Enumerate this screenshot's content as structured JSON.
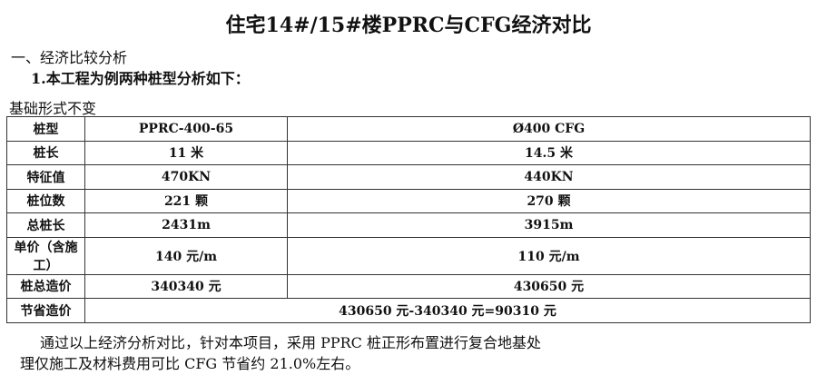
{
  "title": "住宅14#/15#楼PPRC与CFG经济对比",
  "section_heading": "一、经济比较分析",
  "sub_heading": "1.本工程为例两种桩型分析如下：",
  "table_caption": "基础形式不变",
  "table": {
    "rows": [
      [
        "桩型",
        "PPRC-400-65",
        "Ø400 CFG"
      ],
      [
        "桩长",
        "11 米",
        "14.5 米"
      ],
      [
        "特征值",
        "470KN",
        "440KN"
      ],
      [
        "桩位数",
        "221 颗",
        "270 颗"
      ],
      [
        "总桩长",
        "2431m",
        "3915m"
      ],
      [
        "单价（含施工）",
        "140 元/m",
        "110 元/m"
      ],
      [
        "桩总造价",
        "340340 元",
        "430650 元"
      ]
    ],
    "savings_label": "节省造价",
    "savings_value": "430650 元-340340 元=90310 元"
  },
  "conclusion": {
    "line1": "通过以上经济分析对比，针对本项目，采用 PPRC 桩正形布置进行复合地基处",
    "line2": "理仅施工及材料费用可比 CFG 节省约 21.0%左右。"
  }
}
